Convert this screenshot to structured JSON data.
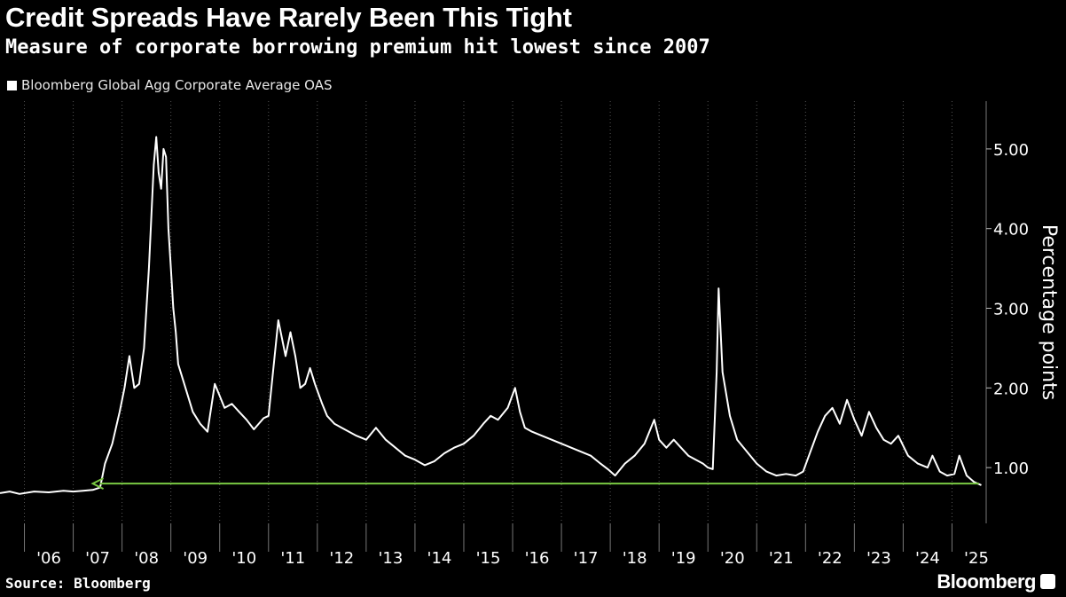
{
  "header": {
    "title": "Credit Spreads Have Rarely Been This Tight",
    "subtitle": "Measure of corporate borrowing premium hit lowest since 2007"
  },
  "footer": {
    "source": "Source: Bloomberg",
    "brand": "Bloomberg"
  },
  "colors": {
    "background": "#000000",
    "series_line": "#ffffff",
    "annotation_arrow": "#7ac943",
    "grid": "#555555"
  },
  "chart_data": {
    "type": "line",
    "title": "Credit Spreads Have Rarely Been This Tight",
    "subtitle": "Measure of corporate borrowing premium hit lowest since 2007",
    "xlabel": "",
    "ylabel": "Percentage points",
    "xlim": [
      2005.5,
      2025.7
    ],
    "ylim": [
      0.3,
      5.6
    ],
    "yticks": [
      1.0,
      2.0,
      3.0,
      4.0,
      5.0
    ],
    "ytick_labels": [
      "1.00",
      "2.00",
      "3.00",
      "4.00",
      "5.00"
    ],
    "xtick_labels": [
      "'06",
      "'07",
      "'08",
      "'09",
      "'10",
      "'11",
      "'12",
      "'13",
      "'14",
      "'15",
      "'16",
      "'17",
      "'18",
      "'19",
      "'20",
      "'21",
      "'22",
      "'23",
      "'24",
      "'25"
    ],
    "grid": "vertical dotted",
    "y_axis_position": "right",
    "legend": {
      "position": "top-left",
      "entries": [
        "Bloomberg Global Agg Corporate Average OAS"
      ]
    },
    "series": [
      {
        "name": "Bloomberg Global Agg Corporate Average OAS",
        "x": [
          2005.5,
          2005.7,
          2005.9,
          2006.2,
          2006.5,
          2006.8,
          2007.0,
          2007.2,
          2007.4,
          2007.55,
          2007.65,
          2007.8,
          2007.95,
          2008.05,
          2008.15,
          2008.25,
          2008.35,
          2008.45,
          2008.55,
          2008.65,
          2008.7,
          2008.75,
          2008.8,
          2008.85,
          2008.9,
          2008.95,
          2009.0,
          2009.05,
          2009.1,
          2009.15,
          2009.25,
          2009.35,
          2009.45,
          2009.6,
          2009.75,
          2009.9,
          2010.1,
          2010.25,
          2010.4,
          2010.55,
          2010.7,
          2010.9,
          2011.0,
          2011.2,
          2011.35,
          2011.45,
          2011.55,
          2011.65,
          2011.75,
          2011.85,
          2011.95,
          2012.1,
          2012.2,
          2012.35,
          2012.5,
          2012.65,
          2012.8,
          2013.0,
          2013.2,
          2013.4,
          2013.5,
          2013.6,
          2013.8,
          2014.0,
          2014.2,
          2014.4,
          2014.6,
          2014.8,
          2015.0,
          2015.2,
          2015.4,
          2015.55,
          2015.7,
          2015.9,
          2016.05,
          2016.15,
          2016.25,
          2016.4,
          2016.6,
          2016.8,
          2017.0,
          2017.2,
          2017.4,
          2017.6,
          2017.8,
          2017.95,
          2018.1,
          2018.3,
          2018.5,
          2018.7,
          2018.9,
          2019.0,
          2019.15,
          2019.3,
          2019.45,
          2019.6,
          2019.75,
          2019.9,
          2020.0,
          2020.1,
          2020.18,
          2020.22,
          2020.3,
          2020.45,
          2020.6,
          2020.8,
          2021.0,
          2021.2,
          2021.4,
          2021.6,
          2021.8,
          2021.95,
          2022.1,
          2022.25,
          2022.4,
          2022.55,
          2022.7,
          2022.85,
          2023.0,
          2023.15,
          2023.3,
          2023.45,
          2023.6,
          2023.75,
          2023.9,
          2024.1,
          2024.3,
          2024.5,
          2024.6,
          2024.75,
          2024.9,
          2025.05,
          2025.15,
          2025.3,
          2025.45,
          2025.6
        ],
        "y": [
          0.68,
          0.7,
          0.67,
          0.7,
          0.69,
          0.71,
          0.7,
          0.71,
          0.72,
          0.75,
          1.05,
          1.3,
          1.7,
          2.0,
          2.4,
          2.0,
          2.05,
          2.5,
          3.5,
          4.8,
          5.15,
          4.7,
          4.5,
          5.0,
          4.9,
          4.0,
          3.5,
          3.0,
          2.7,
          2.3,
          2.1,
          1.9,
          1.7,
          1.55,
          1.45,
          2.05,
          1.75,
          1.8,
          1.7,
          1.6,
          1.48,
          1.62,
          1.65,
          2.85,
          2.4,
          2.7,
          2.4,
          2.0,
          2.05,
          2.25,
          2.05,
          1.8,
          1.65,
          1.55,
          1.5,
          1.45,
          1.4,
          1.35,
          1.5,
          1.35,
          1.3,
          1.25,
          1.15,
          1.1,
          1.03,
          1.08,
          1.18,
          1.25,
          1.3,
          1.4,
          1.55,
          1.65,
          1.6,
          1.75,
          2.0,
          1.7,
          1.5,
          1.45,
          1.4,
          1.35,
          1.3,
          1.25,
          1.2,
          1.15,
          1.05,
          0.98,
          0.9,
          1.05,
          1.15,
          1.3,
          1.6,
          1.35,
          1.25,
          1.35,
          1.25,
          1.15,
          1.1,
          1.05,
          1.0,
          0.98,
          2.2,
          3.25,
          2.2,
          1.65,
          1.35,
          1.2,
          1.05,
          0.95,
          0.9,
          0.92,
          0.9,
          0.95,
          1.2,
          1.45,
          1.65,
          1.75,
          1.55,
          1.85,
          1.6,
          1.4,
          1.7,
          1.5,
          1.35,
          1.3,
          1.4,
          1.15,
          1.05,
          1.0,
          1.15,
          0.95,
          0.9,
          0.92,
          1.15,
          0.9,
          0.82,
          0.78
        ]
      }
    ],
    "annotations": [
      {
        "type": "horizontal-arrow",
        "from_x": 2025.55,
        "to_x": 2007.4,
        "y": 0.8,
        "color": "#7ac943"
      }
    ]
  }
}
